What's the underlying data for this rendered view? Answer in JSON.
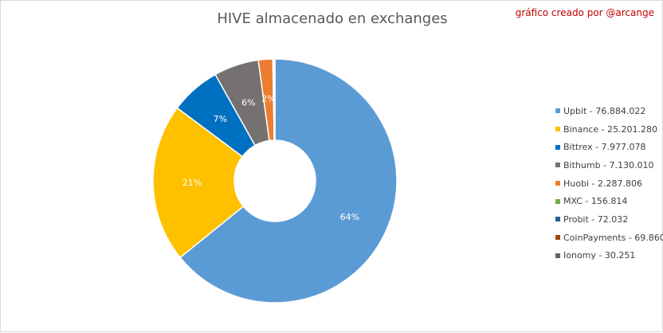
{
  "chart_data": {
    "type": "pie",
    "variant": "donut",
    "title": "HIVE almacenado en exchanges",
    "credit": "gráfico creado por @arcange",
    "legend_position": "right",
    "slices": [
      {
        "label": "Upbit - 76.884.022",
        "value": 76884022,
        "pct_label": "64%",
        "color": "#5b9bd5"
      },
      {
        "label": "Binance - 25.201.280",
        "value": 25201280,
        "pct_label": "21%",
        "color": "#ffc000"
      },
      {
        "label": "Bittrex - 7.977.078",
        "value": 7977078,
        "pct_label": "7%",
        "color": "#0070c0"
      },
      {
        "label": "Bithumb - 7.130.010",
        "value": 7130010,
        "pct_label": "6%",
        "color": "#767171"
      },
      {
        "label": "Huobi - 2.287.806",
        "value": 2287806,
        "pct_label": "2%",
        "color": "#ed7d31"
      },
      {
        "label": "MXC - 156.814",
        "value": 156814,
        "pct_label": "",
        "color": "#70ad47"
      },
      {
        "label": "Probit - 72.032",
        "value": 72032,
        "pct_label": "",
        "color": "#255e91"
      },
      {
        "label": "CoinPayments - 69.860",
        "value": 69860,
        "pct_label": "",
        "color": "#9e480e"
      },
      {
        "label": "Ionomy - 30.251",
        "value": 30251,
        "pct_label": "",
        "color": "#636363"
      }
    ]
  }
}
